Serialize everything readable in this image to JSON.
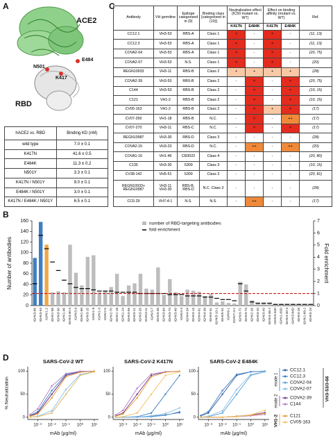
{
  "panels": [
    "A",
    "B",
    "C",
    "D"
  ],
  "structure": {
    "labels": [
      "ACE2",
      "E484",
      "N501",
      "K417",
      "RBD"
    ]
  },
  "kd_table": {
    "header": [
      "hACE2 vs. RBD",
      "Binding KD (nM)"
    ],
    "rows": [
      [
        "wild type",
        "7.0 ± 0.1"
      ],
      [
        "K417N",
        "41.6 ± 0.5"
      ],
      [
        "E484K",
        "11.3 ± 0.2"
      ],
      [
        "N501Y",
        "3.3 ± 0.1"
      ],
      [
        "K417N / N501Y",
        "9.0 ± 0.1"
      ],
      [
        "E484K / N501Y",
        "3.0 ± 0.1"
      ],
      [
        "K417N / E484K / N501Y",
        "6.5 ± 0.1"
      ]
    ]
  },
  "antibody_table": {
    "header": [
      "Antibody",
      "VH germline",
      "Epitope categorized in (9)",
      "Binding class [categorized in (10)]",
      "Neutralization effect (IC50 mutant vs. WT)",
      "Effect on binding affinity (mutant vs. WT)",
      "Ref."
    ],
    "subheader": [
      "K417N",
      "E484K",
      "K417N",
      "E484K"
    ],
    "cell_colors": {
      "×": "#e32b1e",
      "+": "#f9c9a6",
      "++": "#f08a3a"
    },
    "rows": [
      [
        "CC12.1",
        "VH3-53",
        "RBS-A",
        "Class 1",
        "×",
        "-",
        "×",
        "-",
        "(11, 13)"
      ],
      [
        "CC12.3",
        "VH3-53",
        "RBS-A",
        "Class 1",
        "×",
        "-",
        "×",
        "-",
        "(11, 13)"
      ],
      [
        "COVA2-04",
        "VH3-53",
        "RBS-A",
        "Class 1",
        "×",
        "-",
        "×",
        "-",
        "(20, 75)"
      ],
      [
        "COVA2-07",
        "VH3-53",
        "N.S.",
        "Class 1",
        "×",
        "-",
        "×",
        "-",
        "(20)"
      ],
      [
        "REGN10933",
        "VH3-11",
        "RBS-B",
        "Class 2",
        "+",
        "+",
        "+",
        "+",
        "(28)"
      ],
      [
        "COVA2-39",
        "VH3-53",
        "RBS-B",
        "Class 2",
        "-",
        "×",
        "-",
        "×",
        "(20, 75)"
      ],
      [
        "C144",
        "VH3-53",
        "RBS-B",
        "Class 2",
        "-",
        "×",
        "-",
        "×",
        "(10, 15)"
      ],
      [
        "C121",
        "VH1-2",
        "RBS-B",
        "Class 2",
        "-",
        "×",
        "-",
        "×",
        "(10, 15)"
      ],
      [
        "CV05-163",
        "VH1-2",
        "RBS-B",
        "Class 2",
        "-",
        "×",
        "+",
        "×",
        "(17)"
      ],
      [
        "CV07-250",
        "VH1-18",
        "RBS-B",
        "N.C.",
        "-",
        "×",
        "-",
        "++",
        "(17)"
      ],
      [
        "CV07-270",
        "VH3-11",
        "RBS-C",
        "N.C.",
        "-",
        "×",
        "-",
        "×",
        "(17)"
      ],
      [
        "REGN10987",
        "VH3-30",
        "RBS-D",
        "Class 3",
        "-",
        "-",
        "-",
        "-",
        "(28)"
      ],
      [
        "COVA2-15",
        "VH3-23",
        "RBS-D",
        "N.C.",
        "-",
        "++",
        "-",
        "++",
        "(20)"
      ],
      [
        "COVA1-16",
        "VH1-46",
        "CR3022",
        "Class 4",
        "-",
        "-",
        "-",
        "-",
        "(20, 80)"
      ],
      [
        "C135",
        "VH3-30",
        "S309",
        "Class 3",
        "-",
        "-",
        "-",
        "-",
        "(10, 15)"
      ],
      [
        "CV38-142",
        "VH5-51",
        "S309",
        "Class 3",
        "-",
        "-",
        "-",
        "-",
        "(20, 81)"
      ],
      [
        "REGN10933+ REGN10987",
        "VH3-11 VH3-30",
        "RBS-B, RBS-D",
        "N.C. Class 3",
        "-",
        "-",
        "-",
        "-",
        "(28)"
      ],
      [
        "CC6.29",
        "VH7-4-1",
        "N.S.",
        "N.S.",
        "-",
        "++",
        "-",
        "-",
        "(17)"
      ]
    ]
  },
  "chart_data": [
    {
      "type": "bar",
      "y_label": "Number of antibodies",
      "y2_label": "Fold enrichment",
      "categories": [
        "IGHV3-66",
        "IGHV3-53",
        "IGHV1-2",
        "IGHV1-58",
        "IGHV3-30",
        "IGHV1-46",
        "IGHV3-30-3",
        "IGHV3-9",
        "IGHV1-69",
        "IGHV3-15",
        "IGHV1-8",
        "IGHV1-3",
        "IGHV2-5",
        "IGHV2-70",
        "IGHV1-18",
        "IGHV1-24",
        "IGHV4-59",
        "IGHV3-21",
        "IGHV3-33",
        "IGHV3-11",
        "IGHV3-7",
        "IGHV3-48",
        "IGHV3-64",
        "IGHV3-74",
        "IGHV3-49",
        "IGHV4-4",
        "IGHV4-34",
        "IGHV3-13",
        "IGHV4-61",
        "IGHV4-39",
        "IGHV4-31",
        "IGHV5-10-1",
        "IGHV5-51",
        "IGHV6-1",
        "IGHV7-4-1",
        "IGHV3-72",
        "IGHV3-73",
        "IGHV2-26",
        "IGHV3-20",
        "IGHV3-43",
        "IGHV4-38-2",
        "IGHV3-43D",
        "IGHV1-69D",
        "IGHV4-30-4",
        "IGHV3-64D",
        "IGHV4-28",
        "IGHV1-69-2",
        "IGHV3-23"
      ],
      "series": [
        {
          "name": "number of RBD-targeting antibodies",
          "color": "#bdbdbd",
          "colors": [
            "#3f7fc1",
            "#3f7fc1",
            "#f0a848",
            "#bdbdbd",
            "#bdbdbd",
            "#bdbdbd",
            "#bdbdbd",
            "#bdbdbd",
            "#bdbdbd",
            "#bdbdbd",
            "#bdbdbd",
            "#bdbdbd",
            "#bdbdbd",
            "#bdbdbd",
            "#bdbdbd",
            "#bdbdbd",
            "#bdbdbd",
            "#bdbdbd",
            "#bdbdbd",
            "#bdbdbd",
            "#bdbdbd",
            "#bdbdbd",
            "#bdbdbd",
            "#bdbdbd",
            "#bdbdbd",
            "#bdbdbd",
            "#bdbdbd",
            "#bdbdbd",
            "#bdbdbd",
            "#bdbdbd",
            "#bdbdbd",
            "#bdbdbd",
            "#bdbdbd",
            "#bdbdbd",
            "#bdbdbd",
            "#bdbdbd",
            "#bdbdbd",
            "#bdbdbd",
            "#bdbdbd",
            "#bdbdbd",
            "#bdbdbd",
            "#bdbdbd",
            "#bdbdbd",
            "#bdbdbd",
            "#bdbdbd",
            "#bdbdbd",
            "#bdbdbd",
            "#bdbdbd"
          ],
          "values": [
            90,
            158,
            115,
            25,
            27,
            25,
            115,
            62,
            38,
            92,
            95,
            25,
            28,
            35,
            60,
            18,
            38,
            42,
            60,
            32,
            30,
            72,
            20,
            50,
            25,
            18,
            30,
            28,
            26,
            18,
            22,
            6,
            8,
            5,
            4,
            45,
            40,
            10,
            5,
            4,
            4,
            3,
            3,
            3,
            3,
            2,
            2,
            2
          ]
        },
        {
          "name": "fold enrichment",
          "color": "#000000",
          "axis": "y2",
          "values": [
            1.8,
            5.8,
            4.7,
            3.6,
            2.9,
            2.1,
            1.8,
            1.5,
            1.4,
            1.4,
            1.3,
            1.2,
            1.2,
            1.2,
            1.1,
            1.1,
            1.1,
            1.1,
            1.0,
            1.0,
            1.0,
            1.0,
            1.0,
            0.9,
            0.9,
            0.9,
            0.8,
            0.8,
            0.8,
            0.7,
            0.7,
            0.6,
            0.5,
            0.5,
            0.4,
            1.8,
            1.2,
            0.3,
            0.2,
            0.2,
            0.2,
            0.1,
            0.1,
            0.1,
            0.1,
            0.1,
            0.1,
            0.1
          ]
        }
      ],
      "ylim": [
        0,
        160
      ],
      "yticks": [
        0,
        20,
        40,
        60,
        80,
        100,
        120,
        140,
        160
      ],
      "y2lim": [
        0,
        7
      ],
      "y2ticks": [
        0,
        1,
        2,
        3,
        4,
        5,
        6,
        7
      ],
      "reference_line": {
        "value": 1,
        "axis": "y2",
        "color": "#c00000"
      }
    },
    {
      "type": "line",
      "title": "SARS-CoV-2 WT",
      "x_label": "mAb (μg/ml)",
      "y_label": "% Neutralization",
      "xscale": "log",
      "x": [
        0.0003,
        0.001,
        0.01,
        0.1,
        1,
        10
      ],
      "xlim": [
        0.0002,
        20
      ],
      "xticks": [
        {
          "value": 0.001,
          "label": "10⁻³"
        },
        {
          "value": 0.01,
          "label": "10⁻²"
        },
        {
          "value": 0.1,
          "label": "10⁻¹"
        },
        {
          "value": 1,
          "label": "10⁰"
        },
        {
          "value": 10,
          "label": "10¹"
        }
      ],
      "ylim": [
        -5,
        110
      ],
      "yticks": [
        0,
        50,
        100
      ],
      "series": [
        {
          "values": [
            3,
            9,
            50,
            91,
            99,
            100
          ]
        },
        {
          "values": [
            4,
            12,
            58,
            93,
            99,
            100
          ]
        },
        {
          "values": [
            0,
            1,
            9,
            50,
            91,
            99
          ]
        },
        {
          "values": [
            0,
            2,
            14,
            60,
            93,
            99
          ]
        },
        {
          "values": [
            3,
            9,
            50,
            91,
            99,
            100
          ]
        },
        {
          "values": [
            6,
            18,
            68,
            95,
            100,
            100
          ]
        },
        {
          "values": [
            2,
            7,
            42,
            88,
            98,
            100
          ]
        },
        {
          "values": [
            0,
            1,
            9,
            50,
            91,
            99
          ]
        }
      ]
    },
    {
      "type": "line",
      "title": "SARS-CoV-2 K417N",
      "x_label": "mAb (μg/ml)",
      "xscale": "log",
      "x": [
        0.0003,
        0.001,
        0.01,
        0.1,
        1,
        10
      ],
      "xlim": [
        0.0002,
        20
      ],
      "xticks": [
        {
          "value": 0.001,
          "label": "10⁻³"
        },
        {
          "value": 0.01,
          "label": "10⁻²"
        },
        {
          "value": 0.1,
          "label": "10⁻¹"
        },
        {
          "value": 1,
          "label": "10⁰"
        },
        {
          "value": 10,
          "label": "10¹"
        }
      ],
      "ylim": [
        -5,
        110
      ],
      "yticks": [
        0,
        50,
        100
      ],
      "series": [
        {
          "values": [
            0,
            0,
            0,
            2,
            5,
            10
          ]
        },
        {
          "values": [
            0,
            0,
            1,
            9,
            50,
            91
          ]
        },
        {
          "values": [
            0,
            0,
            0,
            1,
            4,
            12
          ]
        },
        {
          "values": [
            0,
            0,
            0,
            3,
            8,
            20
          ]
        },
        {
          "values": [
            3,
            9,
            50,
            91,
            99,
            100
          ]
        },
        {
          "values": [
            5,
            15,
            63,
            94,
            99,
            100
          ]
        },
        {
          "values": [
            2,
            7,
            42,
            88,
            98,
            100
          ]
        },
        {
          "values": [
            0,
            1,
            9,
            50,
            91,
            99
          ]
        }
      ]
    },
    {
      "type": "line",
      "title": "SARS-CoV-2 E484K",
      "x_label": "mAb (μg/ml)",
      "xscale": "log",
      "x": [
        0.0003,
        0.001,
        0.01,
        0.1,
        1,
        10
      ],
      "xlim": [
        0.0002,
        20
      ],
      "xticks": [
        {
          "value": 0.001,
          "label": "10⁻³"
        },
        {
          "value": 0.01,
          "label": "10⁻²"
        },
        {
          "value": 0.1,
          "label": "10⁻¹"
        },
        {
          "value": 1,
          "label": "10⁰"
        },
        {
          "value": 10,
          "label": "10¹"
        }
      ],
      "ylim": [
        -5,
        110
      ],
      "yticks": [
        0,
        50,
        100
      ],
      "series": [
        {
          "values": [
            3,
            9,
            50,
            91,
            99,
            100
          ]
        },
        {
          "values": [
            4,
            12,
            58,
            93,
            99,
            100
          ]
        },
        {
          "values": [
            0,
            1,
            9,
            50,
            91,
            99
          ]
        },
        {
          "values": [
            0,
            2,
            14,
            60,
            93,
            99
          ]
        },
        {
          "values": [
            0,
            0,
            0,
            2,
            5,
            10
          ]
        },
        {
          "values": [
            0,
            0,
            0,
            1,
            3,
            6
          ]
        },
        {
          "values": [
            0,
            0,
            0,
            2,
            4,
            8
          ]
        },
        {
          "values": [
            0,
            0,
            0,
            1,
            5,
            15
          ]
        }
      ]
    }
  ],
  "panel_d_legend": {
    "groups": [
      {
        "label": "VH3-53/3-66",
        "color": "#333333",
        "subgroups": [
          {
            "label": "mode 1",
            "color": "#3f7fc1",
            "entries": [
              {
                "name": "CC12.1",
                "color": "#2f5fa8"
              },
              {
                "name": "CC12.3",
                "color": "#3f7fc1"
              },
              {
                "name": "COVA2-04",
                "color": "#5aa0d8"
              },
              {
                "name": "COVA2-07",
                "color": "#86bde6"
              }
            ]
          },
          {
            "label": "mode 2",
            "color": "#7a3e8e",
            "entries": [
              {
                "name": "COVA2-39",
                "color": "#7a3e8e"
              },
              {
                "name": "C144",
                "color": "#b07cc6"
              }
            ]
          }
        ]
      },
      {
        "label": "VH1-2",
        "color": "#e89a2e",
        "subgroups": [
          {
            "entries": [
              {
                "name": "C121",
                "color": "#e89a2e"
              },
              {
                "name": "CV05-163",
                "color": "#f2c15f"
              }
            ]
          }
        ]
      }
    ]
  }
}
